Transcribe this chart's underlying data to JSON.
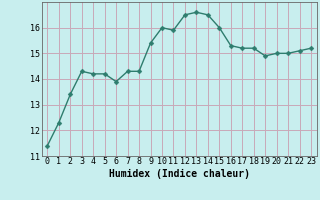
{
  "x": [
    0,
    1,
    2,
    3,
    4,
    5,
    6,
    7,
    8,
    9,
    10,
    11,
    12,
    13,
    14,
    15,
    16,
    17,
    18,
    19,
    20,
    21,
    22,
    23
  ],
  "y": [
    11.4,
    12.3,
    13.4,
    14.3,
    14.2,
    14.2,
    13.9,
    14.3,
    14.3,
    15.4,
    16.0,
    15.9,
    16.5,
    16.6,
    16.5,
    16.0,
    15.3,
    15.2,
    15.2,
    14.9,
    15.0,
    15.0,
    15.1,
    15.2
  ],
  "xlabel": "Humidex (Indice chaleur)",
  "ylim": [
    11,
    17
  ],
  "xlim": [
    -0.5,
    23.5
  ],
  "yticks": [
    11,
    12,
    13,
    14,
    15,
    16
  ],
  "xticks": [
    0,
    1,
    2,
    3,
    4,
    5,
    6,
    7,
    8,
    9,
    10,
    11,
    12,
    13,
    14,
    15,
    16,
    17,
    18,
    19,
    20,
    21,
    22,
    23
  ],
  "line_color": "#2e7d6e",
  "marker_color": "#2e7d6e",
  "bg_color": "#c8eeee",
  "grid_color": "#c8a8b8",
  "xlabel_fontsize": 7,
  "tick_fontsize": 6,
  "marker": "D",
  "markersize": 2.5,
  "linewidth": 1.0
}
